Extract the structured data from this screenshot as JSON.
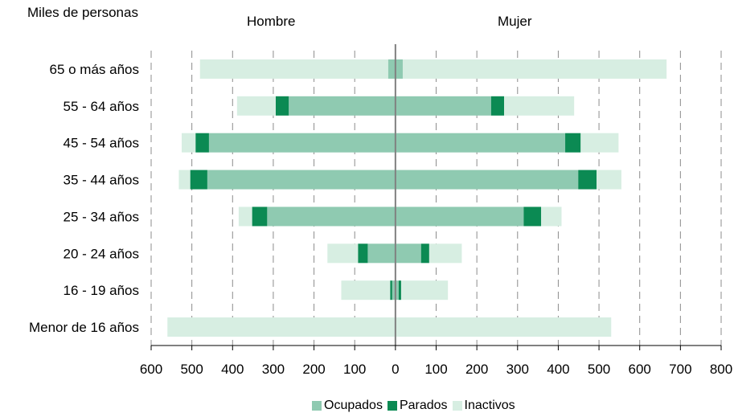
{
  "chart_data": {
    "type": "bar",
    "orientation": "horizontal-population-pyramid",
    "unit_label": "Miles de personas",
    "left_label": "Hombre",
    "right_label": "Mujer",
    "categories": [
      "65 o más años",
      "55 - 64 años",
      "45 - 54 años",
      "35 - 44 años",
      "25 - 34 años",
      "20 - 24 años",
      "16 - 19 años",
      "Menor de 16 años"
    ],
    "xlim": [
      -600,
      800
    ],
    "tick_values": [
      -600,
      -500,
      -400,
      -300,
      -200,
      -100,
      0,
      100,
      200,
      300,
      400,
      500,
      600,
      700,
      800
    ],
    "tick_labels": [
      "600",
      "500",
      "400",
      "300",
      "200",
      "100",
      "0",
      "100",
      "200",
      "300",
      "400",
      "500",
      "600",
      "700",
      "800"
    ],
    "grid": true,
    "legend_position": "bottom",
    "series": [
      {
        "name": "Ocupados",
        "color": "#8fcab1",
        "male": [
          18,
          262,
          458,
          462,
          315,
          68,
          8,
          0
        ],
        "female": [
          18,
          235,
          417,
          449,
          315,
          63,
          8,
          0
        ]
      },
      {
        "name": "Parados",
        "color": "#0b8a53",
        "male": [
          0,
          32,
          33,
          42,
          37,
          24,
          5,
          0
        ],
        "female": [
          0,
          32,
          38,
          45,
          43,
          20,
          6,
          0
        ]
      },
      {
        "name": "Inactivos",
        "color": "#d7eee2",
        "male": [
          462,
          95,
          34,
          28,
          33,
          75,
          120,
          560
        ],
        "female": [
          648,
          172,
          93,
          61,
          50,
          80,
          115,
          530
        ]
      }
    ]
  }
}
